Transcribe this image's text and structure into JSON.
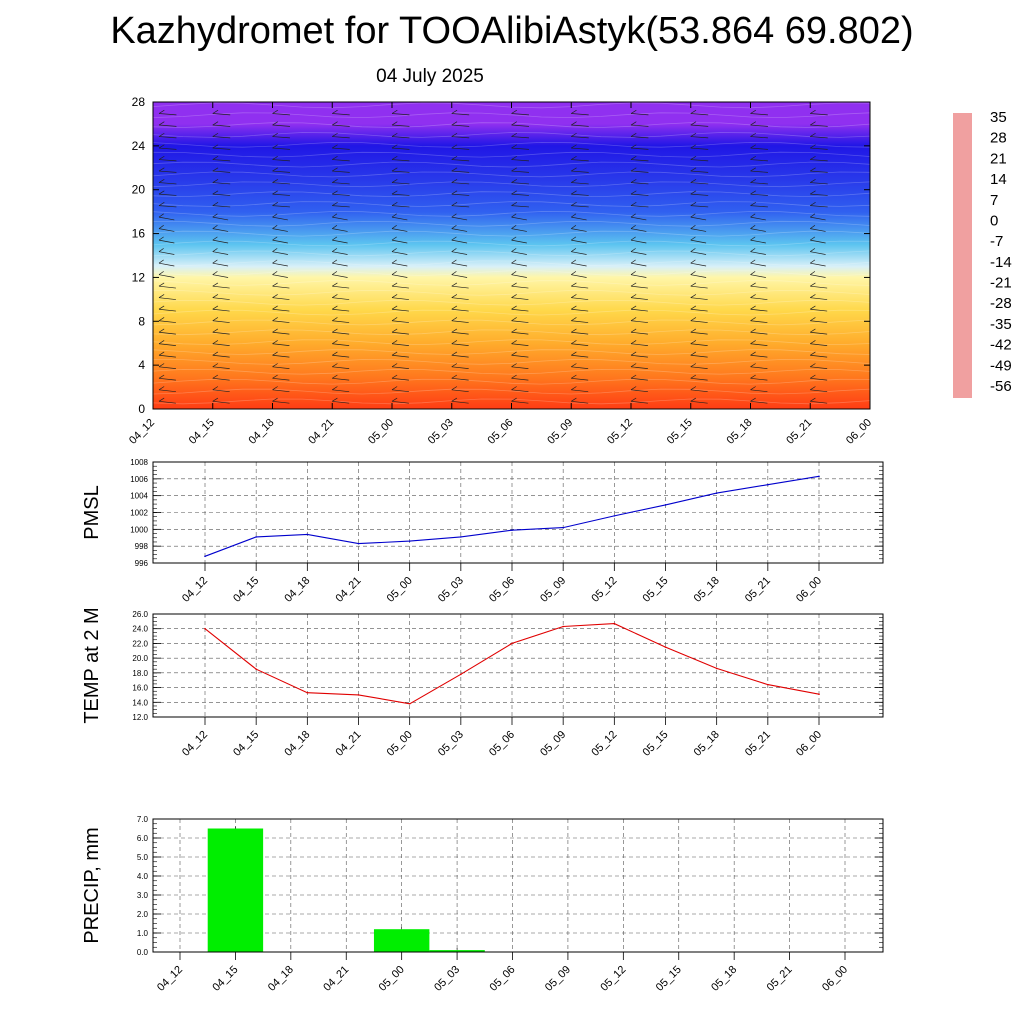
{
  "title": "Kazhydromet for TOOAlibiAstyk(53.864 69.802)",
  "subtitle": "04 July 2025",
  "chart_data": [
    {
      "type": "heatmap",
      "name": "vertical temperature cross-section with wind barbs",
      "x_ticks": [
        "04_12",
        "04_15",
        "04_18",
        "04_21",
        "05_00",
        "05_03",
        "05_06",
        "05_09",
        "05_12",
        "05_15",
        "05_18",
        "05_21",
        "06_00"
      ],
      "y_ticks": [
        0,
        4,
        8,
        12,
        16,
        20,
        24,
        28
      ],
      "ylim": [
        0,
        28
      ],
      "colorbar_labels": [
        35,
        28,
        21,
        14,
        7,
        0,
        -7,
        -14,
        -21,
        -28,
        -35,
        -42,
        -49,
        -56
      ],
      "colorbar_colors": [
        "#f0a0a0",
        "#e01818",
        "#ff3c14",
        "#ff7a1e",
        "#ffac2c",
        "#ffd84a",
        "#fff6a8",
        "#d8f0f8",
        "#5cc4f0",
        "#3a8ef0",
        "#3060f0",
        "#2838ea",
        "#2016e6",
        "#9030f0"
      ],
      "temperature_profile": [
        {
          "height": 0,
          "temp": 21
        },
        {
          "height": 3,
          "temp": 16
        },
        {
          "height": 6,
          "temp": 9
        },
        {
          "height": 9,
          "temp": 2
        },
        {
          "height": 12,
          "temp": -5
        },
        {
          "height": 13,
          "temp": -14
        },
        {
          "height": 15,
          "temp": -24
        },
        {
          "height": 18,
          "temp": -35
        },
        {
          "height": 21,
          "temp": -41
        },
        {
          "height": 24,
          "temp": -48
        },
        {
          "height": 26,
          "temp": -54
        },
        {
          "height": 28,
          "temp": -56
        }
      ]
    },
    {
      "type": "line",
      "ylabel": "PMSL",
      "categories": [
        "04_12",
        "04_15",
        "04_18",
        "04_21",
        "05_00",
        "05_03",
        "05_06",
        "05_09",
        "05_12",
        "05_15",
        "05_18",
        "05_21",
        "06_00"
      ],
      "values": [
        996.8,
        999.1,
        999.4,
        998.3,
        998.6,
        999.1,
        999.9,
        1000.2,
        1001.6,
        1002.9,
        1004.3,
        1005.3,
        1006.3
      ],
      "ylim": [
        996,
        1008
      ],
      "y_ticks": [
        "996",
        "998",
        "1000",
        "1002",
        "1004",
        "1006",
        "1008"
      ],
      "color": "#0000cc",
      "grid": true
    },
    {
      "type": "line",
      "ylabel": "TEMP at 2 M",
      "categories": [
        "04_12",
        "04_15",
        "04_18",
        "04_21",
        "05_00",
        "05_03",
        "05_06",
        "05_09",
        "05_12",
        "05_15",
        "05_18",
        "05_21",
        "06_00"
      ],
      "values": [
        24.0,
        18.5,
        15.3,
        15.0,
        13.8,
        17.8,
        22.0,
        24.3,
        24.7,
        21.5,
        18.6,
        16.4,
        15.1
      ],
      "ylim": [
        12,
        26
      ],
      "y_ticks": [
        "12.0",
        "14.0",
        "16.0",
        "18.0",
        "20.0",
        "22.0",
        "24.0",
        "26.0"
      ],
      "color": "#e00000",
      "grid": true
    },
    {
      "type": "bar",
      "ylabel": "PRECIP, mm",
      "categories": [
        "04_12",
        "04_15",
        "04_18",
        "04_21",
        "05_00",
        "05_03",
        "05_06",
        "05_09",
        "05_12",
        "05_15",
        "05_18",
        "05_21",
        "06_00"
      ],
      "values": [
        0,
        6.5,
        0,
        0,
        1.2,
        0.1,
        0,
        0,
        0,
        0,
        0,
        0,
        0
      ],
      "ylim": [
        0,
        7
      ],
      "y_ticks": [
        "0.0",
        "1.0",
        "2.0",
        "3.0",
        "4.0",
        "5.0",
        "6.0",
        "7.0"
      ],
      "color": "#00ee00",
      "grid": true
    }
  ]
}
